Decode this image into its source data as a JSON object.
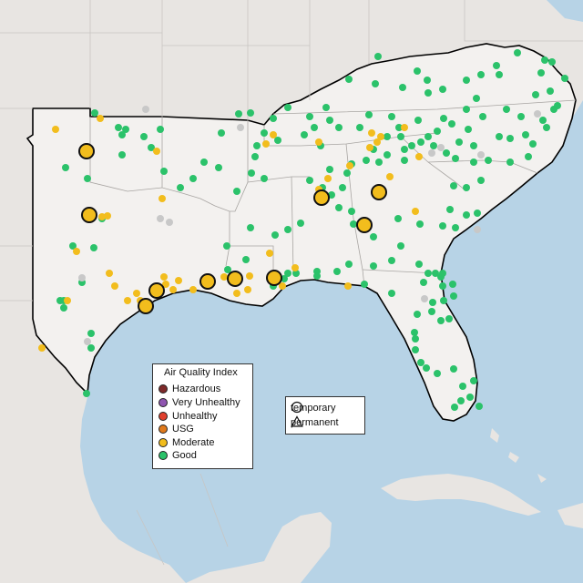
{
  "legend": {
    "title": "Air Quality Index",
    "categories": [
      {
        "label": "Hazardous",
        "color": "#7e2a2a"
      },
      {
        "label": "Very Unhealthy",
        "color": "#8f55b0"
      },
      {
        "label": "Unhealthy",
        "color": "#e0402e"
      },
      {
        "label": "USG",
        "color": "#e07a1c"
      },
      {
        "label": "Moderate",
        "color": "#f2bd1d"
      },
      {
        "label": "Good",
        "color": "#2bc26a"
      }
    ]
  },
  "monitor_types": {
    "temporary": "temporary",
    "permanent": "permanent"
  },
  "colors": {
    "water": "#b7d3e6",
    "land": "#ece9e6",
    "highlight_land": "#f3f1ef",
    "unmonitored": "#c8c8c8"
  }
}
